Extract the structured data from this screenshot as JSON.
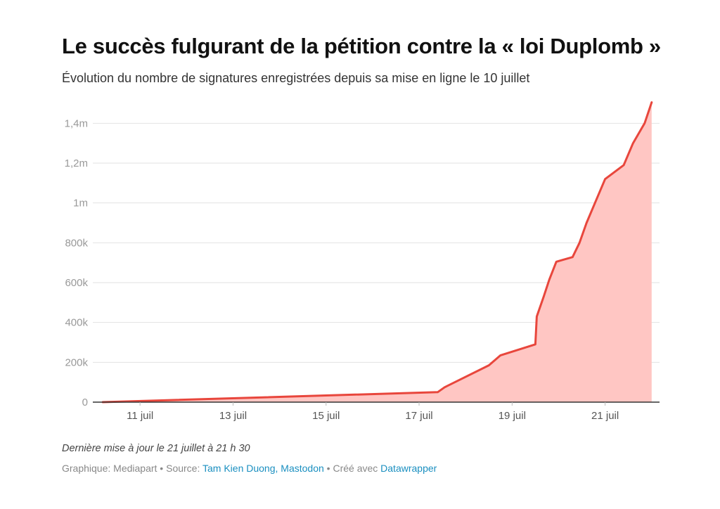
{
  "title": "Le succès fulgurant de la pétition contre la « loi Duplomb »",
  "subtitle": "Évolution du nombre de signatures enregistrées depuis sa mise en ligne le 10 juillet",
  "note": "Dernière mise à jour le 21 juillet à 21 h 30",
  "footer": {
    "graphic_label": "Graphique: Mediapart",
    "separator": " • ",
    "source_label": "Source:",
    "source_link": "Tam Kien Duong, Mastodon",
    "created_label": "Créé avec",
    "tool_link": "Datawrapper"
  },
  "colors": {
    "line": "#e8463c",
    "area": "#ffc6c3",
    "link": "#1a8fc0"
  },
  "chart_data": {
    "type": "area",
    "title": "Le succès fulgurant de la pétition contre la « loi Duplomb »",
    "xlabel": "",
    "ylabel": "",
    "unit_x": "days since 10 July (x=10 is 10 juillet, 00h)",
    "xlim": [
      10.0,
      22.2
    ],
    "ylim": [
      0,
      1500000
    ],
    "x_ticks": [
      {
        "x": 11,
        "label": "11 juil"
      },
      {
        "x": 13,
        "label": "13 juil"
      },
      {
        "x": 15,
        "label": "15 juil"
      },
      {
        "x": 17,
        "label": "17 juil"
      },
      {
        "x": 19,
        "label": "19 juil"
      },
      {
        "x": 21,
        "label": "21 juil"
      }
    ],
    "y_ticks": [
      {
        "y": 0,
        "label": "0"
      },
      {
        "y": 200000,
        "label": "200k"
      },
      {
        "y": 400000,
        "label": "400k"
      },
      {
        "y": 600000,
        "label": "600k"
      },
      {
        "y": 800000,
        "label": "800k"
      },
      {
        "y": 1000000,
        "label": "1m"
      },
      {
        "y": 1200000,
        "label": "1,2m"
      },
      {
        "y": 1400000,
        "label": "1,4m"
      }
    ],
    "series": [
      {
        "name": "Signatures",
        "points": [
          [
            10.2,
            0
          ],
          [
            17.4,
            50000
          ],
          [
            17.55,
            75000
          ],
          [
            18.5,
            185000
          ],
          [
            18.75,
            235000
          ],
          [
            19.5,
            290000
          ],
          [
            19.53,
            430000
          ],
          [
            19.68,
            530000
          ],
          [
            19.8,
            615000
          ],
          [
            19.95,
            705000
          ],
          [
            20.1,
            715000
          ],
          [
            20.3,
            728000
          ],
          [
            20.45,
            800000
          ],
          [
            20.6,
            900000
          ],
          [
            20.8,
            1010000
          ],
          [
            21.0,
            1120000
          ],
          [
            21.4,
            1190000
          ],
          [
            21.6,
            1300000
          ],
          [
            21.85,
            1400000
          ],
          [
            22.0,
            1505000
          ]
        ]
      }
    ]
  }
}
